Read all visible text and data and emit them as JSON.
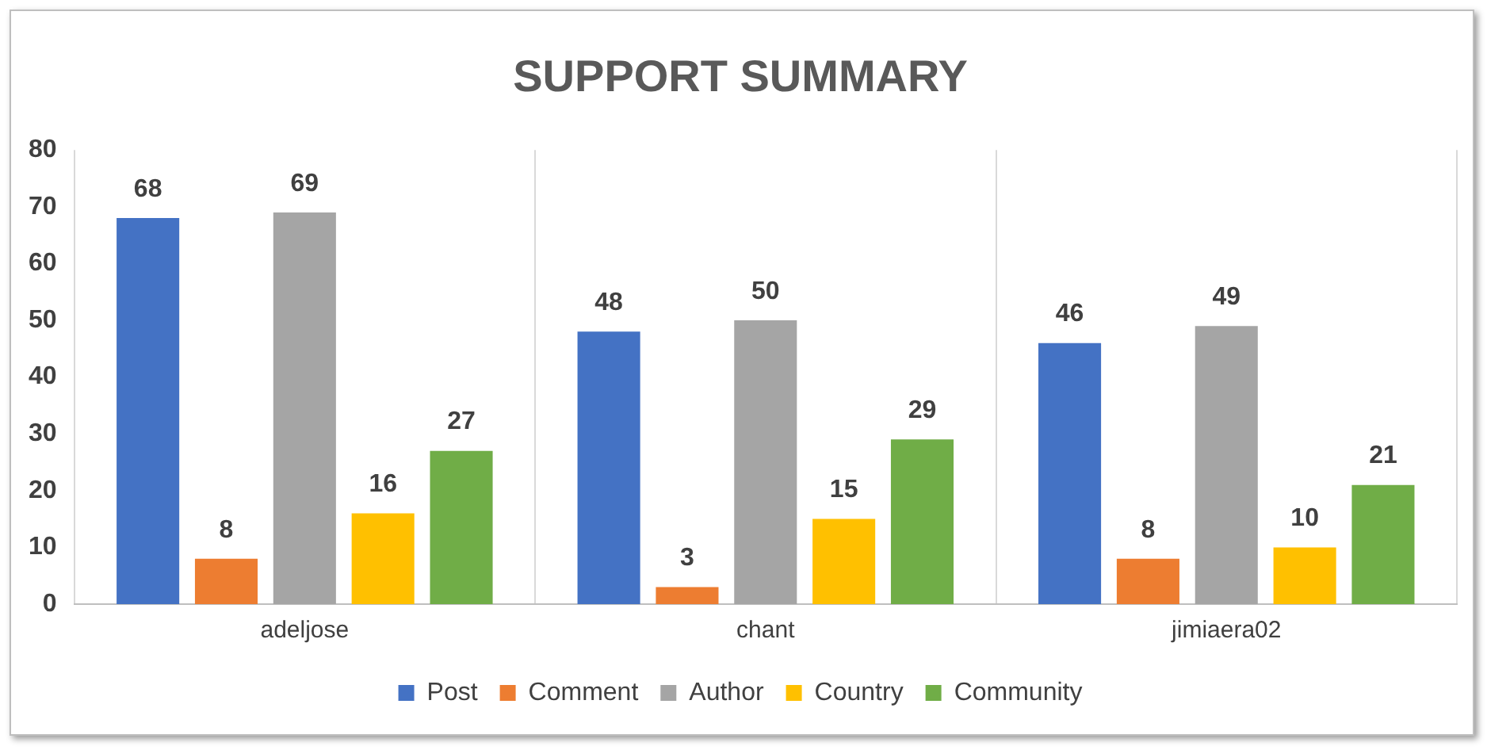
{
  "chart_data": {
    "type": "bar",
    "title": "SUPPORT SUMMARY",
    "categories": [
      "adeljose",
      "chant",
      "jimiaera02"
    ],
    "series": [
      {
        "name": "Post",
        "color": "#4472c4",
        "values": [
          68,
          48,
          46
        ]
      },
      {
        "name": "Comment",
        "color": "#ed7d31",
        "values": [
          8,
          3,
          8
        ]
      },
      {
        "name": "Author",
        "color": "#a5a5a5",
        "values": [
          69,
          50,
          49
        ]
      },
      {
        "name": "Country",
        "color": "#ffc000",
        "values": [
          16,
          15,
          10
        ]
      },
      {
        "name": "Community",
        "color": "#70ad47",
        "values": [
          27,
          29,
          21
        ]
      }
    ],
    "ylim": [
      0,
      80
    ],
    "yticks": [
      0,
      10,
      20,
      30,
      40,
      50,
      60,
      70,
      80
    ],
    "grid": "x",
    "legend": "bottom",
    "data_labels": true
  }
}
